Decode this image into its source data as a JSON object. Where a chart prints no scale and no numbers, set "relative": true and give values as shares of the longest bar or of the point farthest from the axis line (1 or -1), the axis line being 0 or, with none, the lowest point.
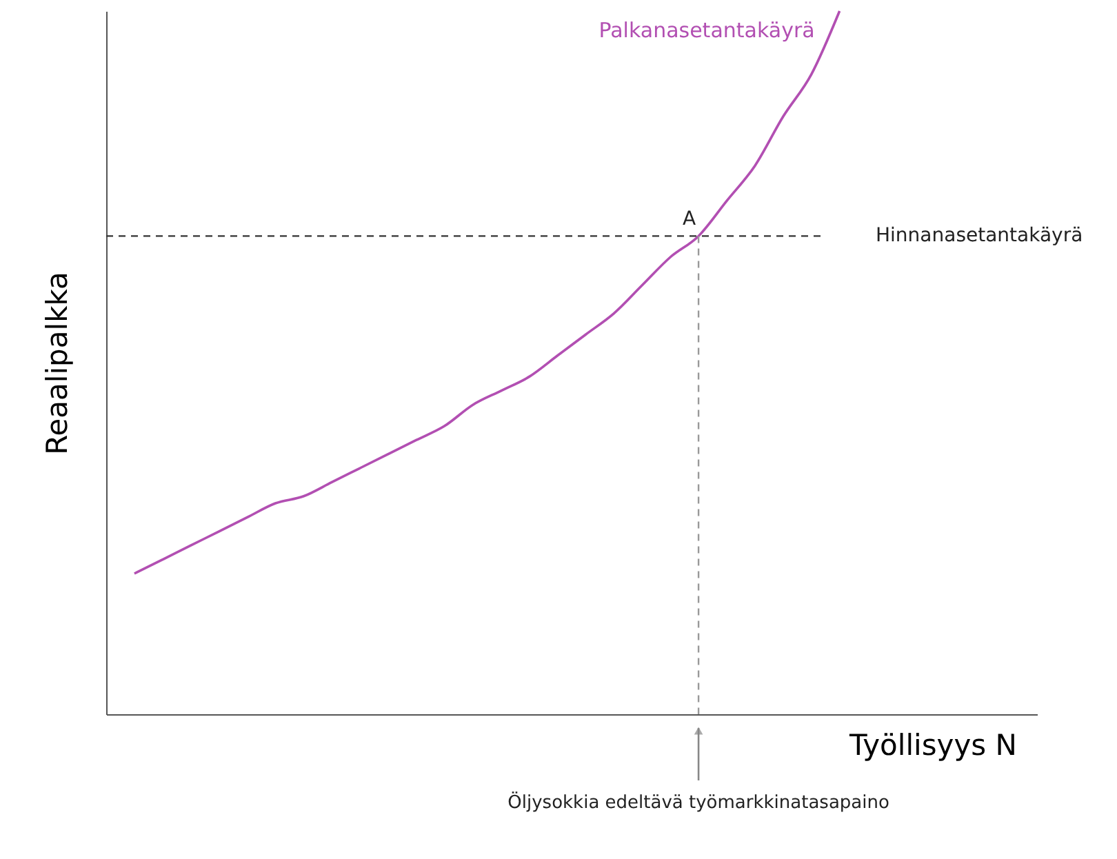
{
  "chart_data": {
    "type": "line",
    "relative": true,
    "xlabel": "Työllisyys N",
    "ylabel": "Reaalipalkka",
    "categories": [
      null,
      null,
      null,
      null,
      null,
      null,
      null,
      null,
      null,
      null,
      null,
      null,
      null,
      null,
      null,
      null,
      null,
      null,
      null,
      null,
      null,
      null,
      null,
      null,
      null,
      null,
      null,
      null,
      null,
      null,
      null,
      null,
      null,
      null
    ],
    "series": [
      {
        "name": "Palkanasetantakäyrä",
        "color": "#b24fb2",
        "values": [
          null,
          0.2,
          0.22,
          0.24,
          0.26,
          0.28,
          0.3,
          0.31,
          0.33,
          0.35,
          0.37,
          0.39,
          0.41,
          0.44,
          0.46,
          0.48,
          0.51,
          0.54,
          0.57,
          0.61,
          0.65,
          0.68,
          0.73,
          0.78,
          0.85,
          0.91,
          1.0,
          null,
          null,
          null,
          null,
          null,
          null,
          null
        ]
      }
    ],
    "ref_lines": [
      {
        "axis": "y",
        "value": 0.68,
        "label": "Hinnanasetantakäyrä",
        "color": "#333333",
        "line_style": "dashed"
      }
    ],
    "annotations": [
      "A",
      "Öljysokkia edeltävä työmarkkinatasapaino"
    ],
    "grid": false,
    "tick_labels": false,
    "marker": "none",
    "line_style": "solid"
  }
}
